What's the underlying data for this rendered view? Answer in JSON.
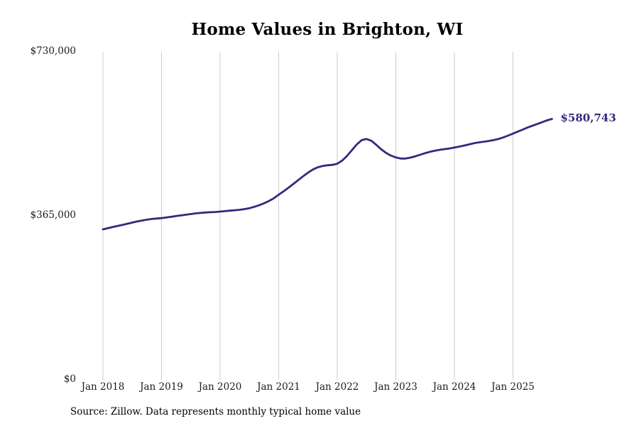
{
  "title": "Home Values in Brighton, WI",
  "source_note": "Source: Zillow. Data represents monthly typical home value",
  "chart_data": {
    "type": "line",
    "title": "Home Values in Brighton, WI",
    "frequency": "monthly",
    "start": "Jan 2018",
    "end": "Sep 2025",
    "x_tick_labels": [
      "Jan 2018",
      "Jan 2019",
      "Jan 2020",
      "Jan 2021",
      "Jan 2022",
      "Jan 2023",
      "Jan 2024",
      "Jan 2025"
    ],
    "y_tick_labels": [
      "$0",
      "$365,000",
      "$730,000"
    ],
    "y_ticks": [
      0,
      365000,
      730000
    ],
    "ylim": [
      0,
      730000
    ],
    "grid": "vertical-gridlines-only",
    "legend": "none",
    "line_color": "#312a7d",
    "gridline_color": "#cccccc",
    "end_label": "$580,743",
    "end_value": 580743,
    "values": [
      335000,
      337500,
      340000,
      342500,
      345000,
      347500,
      350000,
      352500,
      354500,
      356500,
      358000,
      359000,
      360000,
      361500,
      363000,
      364500,
      366000,
      367500,
      369000,
      370500,
      371500,
      372500,
      373000,
      373500,
      374500,
      375500,
      376500,
      377500,
      378500,
      380000,
      382000,
      385000,
      388500,
      393000,
      398000,
      404000,
      412000,
      419500,
      427500,
      436000,
      444500,
      453000,
      461000,
      468000,
      473000,
      476000,
      477500,
      478500,
      481000,
      488000,
      498500,
      511000,
      524000,
      533500,
      536000,
      532000,
      523000,
      513000,
      505000,
      499000,
      495000,
      492500,
      492500,
      494500,
      497500,
      501000,
      504500,
      507500,
      510000,
      512000,
      513500,
      515000,
      517000,
      519000,
      521500,
      524000,
      526500,
      528500,
      530000,
      531500,
      533500,
      536000,
      539500,
      543500,
      548000,
      552500,
      557000,
      561500,
      565500,
      569500,
      573500,
      577500,
      580743
    ]
  }
}
